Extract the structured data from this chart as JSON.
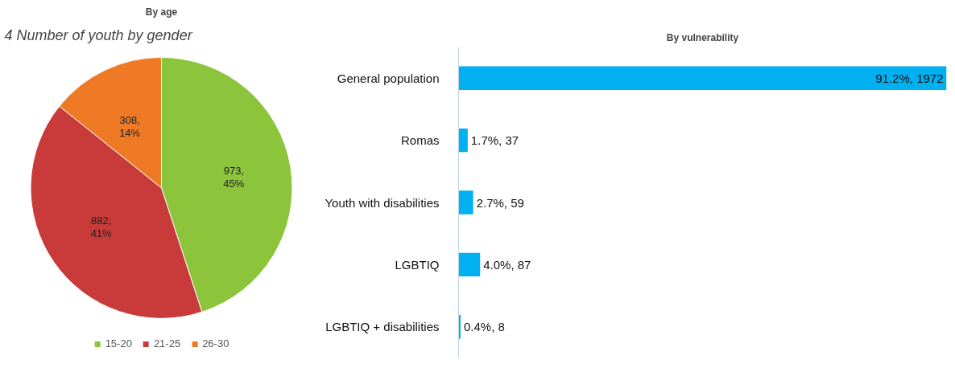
{
  "chart_data": [
    {
      "type": "pie",
      "title": "By age",
      "annotations": [
        "4 Number of youth by gender"
      ],
      "categories": [
        "15-20",
        "21-25",
        "26-30"
      ],
      "values": [
        973,
        882,
        308
      ],
      "colors": [
        "#8cc43c",
        "#c93a3a",
        "#ee7a25"
      ],
      "value_labels": [
        "973,\n45%",
        "882,\n41%",
        "308,\n14%"
      ],
      "legend": "bottom"
    },
    {
      "type": "bar",
      "orientation": "horizontal",
      "title": "By vulnerability",
      "categories": [
        "General population",
        "Romas",
        "Youth with disabilities",
        "LGBTIQ",
        "LGBTIQ + disabilities"
      ],
      "values": [
        1972,
        37,
        59,
        87,
        8
      ],
      "color": "#00b0f0",
      "value_labels": [
        "91.2%, 1972",
        "1.7%, 37",
        "2.7%, 59",
        "4.0%, 87",
        "0.4%, 8"
      ],
      "tick_labels": "y",
      "grid": false,
      "legend": false
    }
  ]
}
